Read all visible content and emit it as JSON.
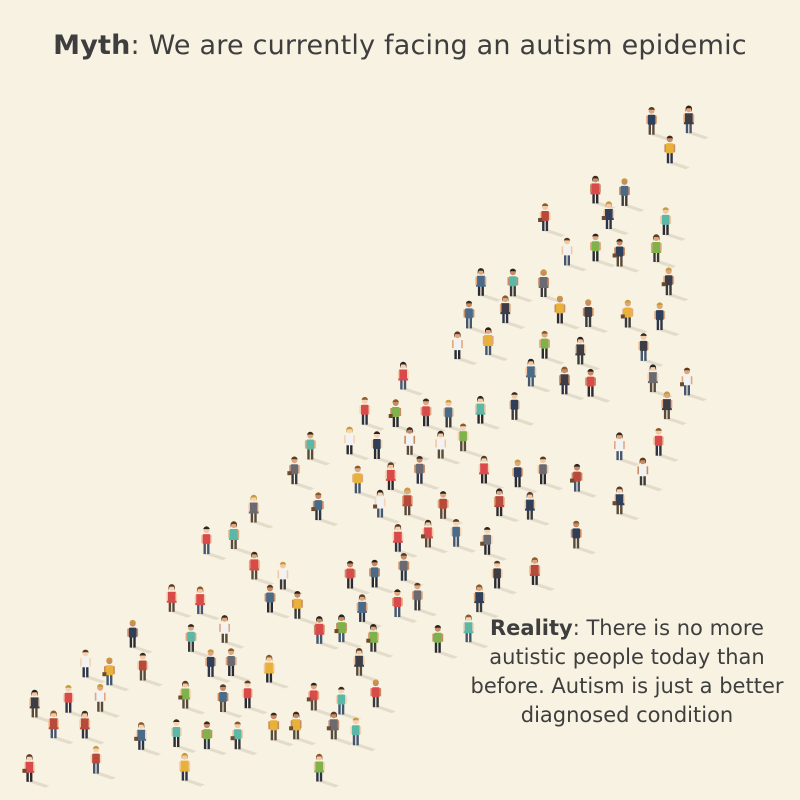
{
  "myth": {
    "label": "Myth",
    "text": ": We are currently facing an autism epidemic"
  },
  "reality": {
    "label": "Reality",
    "text": ": There is no more autistic people today than before. Autism is just a better diagnosed condition"
  },
  "illustration": {
    "subject": "crowd of people standing in a rising diagonal formation",
    "colors": {
      "background": "#f8f2e2",
      "text": "#3e3e3e",
      "shadow": "#e3dccb"
    }
  }
}
